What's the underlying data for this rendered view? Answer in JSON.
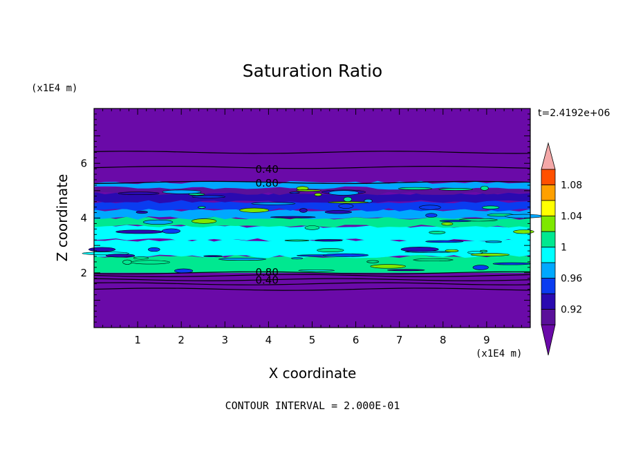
{
  "chart_data": {
    "type": "heatmap",
    "title": "Saturation Ratio",
    "xlabel": "X coordinate",
    "ylabel": "Z coordinate",
    "x_units": "(x1E4 m)",
    "y_units": "(x1E4 m)",
    "time_label": "t=2.4192e+06",
    "footer": "CONTOUR INTERVAL = 2.000E-01",
    "xlim": [
      0,
      10
    ],
    "ylim": [
      0,
      8
    ],
    "x_ticks": [
      1,
      2,
      3,
      4,
      5,
      6,
      7,
      8,
      9
    ],
    "y_ticks": [
      2,
      4,
      6
    ],
    "contour_labels": [
      {
        "text": "0.40",
        "x": 3.7,
        "y": 5.8
      },
      {
        "text": "0.80",
        "x": 3.7,
        "y": 5.3
      },
      {
        "text": "0.80",
        "x": 3.7,
        "y": 2.05
      },
      {
        "text": "0.40",
        "x": 3.7,
        "y": 1.75
      }
    ],
    "colorbar": {
      "ticks": [
        "1.08",
        "1.04",
        "1",
        "0.96",
        "0.92"
      ],
      "tick_values": [
        1.08,
        1.04,
        1.0,
        0.96,
        0.92
      ],
      "levels": [
        0.9,
        0.92,
        0.94,
        0.96,
        0.98,
        1.0,
        1.02,
        1.04,
        1.06,
        1.08,
        1.1
      ],
      "colors": [
        "#5a109a",
        "#2a0ab0",
        "#0a3cf0",
        "#00a8ff",
        "#00ffff",
        "#00e890",
        "#7ee800",
        "#ffff00",
        "#ffa000",
        "#ff5000",
        "#ff2020"
      ],
      "under_color": "#6a0aa8",
      "over_color": "#f4a8a8"
    },
    "bands": [
      {
        "z0": 0.0,
        "z1": 2.0,
        "level": 0.4
      },
      {
        "z0": 2.0,
        "z1": 2.6,
        "level": 1.0
      },
      {
        "z0": 2.6,
        "z1": 3.2,
        "level": 0.99
      },
      {
        "z0": 3.2,
        "z1": 3.7,
        "level": 0.98
      },
      {
        "z0": 3.7,
        "z1": 4.0,
        "level": 1.0
      },
      {
        "z0": 4.0,
        "z1": 4.3,
        "level": 0.97
      },
      {
        "z0": 4.3,
        "z1": 4.6,
        "level": 0.95
      },
      {
        "z0": 4.6,
        "z1": 4.9,
        "level": 0.93
      },
      {
        "z0": 4.9,
        "z1": 5.1,
        "level": 0.91
      },
      {
        "z0": 5.1,
        "z1": 5.3,
        "level": 0.96
      },
      {
        "z0": 5.3,
        "z1": 8.0,
        "level": 0.4
      }
    ],
    "contour_lines_z": [
      1.4,
      1.6,
      1.75,
      1.9,
      2.0,
      5.3,
      5.85,
      6.4
    ]
  }
}
